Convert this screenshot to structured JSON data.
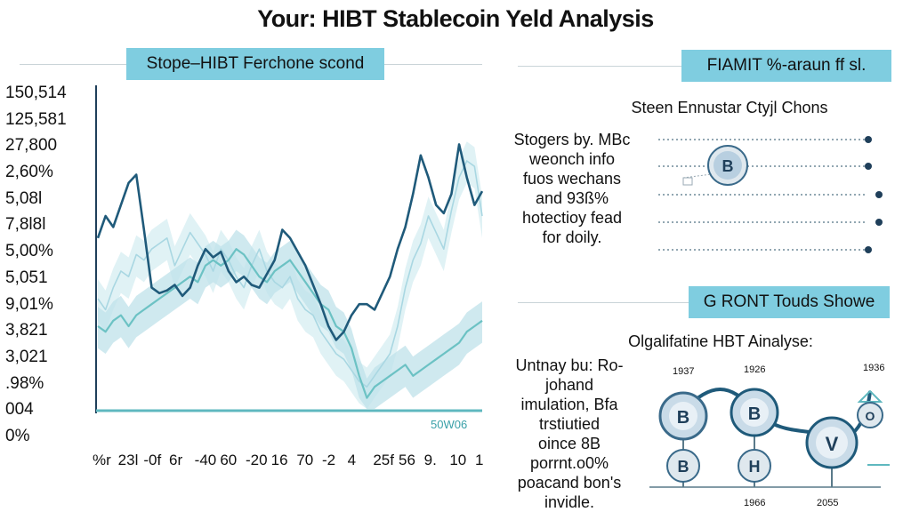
{
  "title": "Your: HIBT Stablecoin Yeld Analysis",
  "left_panel": {
    "header": "Stope–HIBT Ferchone scond",
    "baseline_label": "50W06"
  },
  "right_top": {
    "header": "FIAMIT %-araun ff sl.",
    "subtitle": "Steen Ennustar Ctyjl Chons",
    "text_lines": [
      "Stogers by. MBc",
      "weonch info",
      "fuos wechans",
      "and 93ß%",
      "hotectioy fead",
      "for doily."
    ],
    "badge": "B"
  },
  "right_bottom": {
    "header": "G RONT Touds Showe",
    "subtitle": "Olgalifatine HBT Ainalyse:",
    "text_lines": [
      "Untnay bu: Ro-",
      "johand",
      "imulation, Bfa",
      "trstiutied",
      "oince 8B",
      "porrnt.o0%",
      "poacand bon's",
      "invidle."
    ],
    "year_labels": [
      "1937",
      "1926",
      "1936",
      "1966",
      "2055"
    ],
    "coin_labels": [
      "B",
      "B",
      "B",
      "H",
      "V",
      "O"
    ]
  },
  "chart_data": {
    "type": "line",
    "title": "Stope–HIBT Ferchone scond",
    "y_tick_labels": [
      "150,514",
      "125,581",
      "27,800",
      "2,60%",
      "5,08l",
      "7,8l8l",
      "5,00%",
      "5,051",
      "9,01%",
      "3,821",
      "3,021",
      ".98%",
      "004",
      "0%"
    ],
    "x_tick_labels": [
      "%r",
      "23l",
      "-0f",
      "6r",
      "-40",
      "60",
      "-20",
      "16",
      "70",
      "-2",
      "4",
      "25f",
      "56",
      "9.",
      "10",
      "1"
    ],
    "x": [
      0,
      2,
      4,
      6,
      8,
      10,
      12,
      14,
      16,
      18,
      20,
      22,
      24,
      26,
      28,
      30,
      32,
      34,
      36,
      38,
      40,
      42,
      44,
      46,
      48,
      50,
      52,
      54,
      56,
      58,
      60,
      62,
      64,
      66,
      68,
      70,
      72,
      74,
      76,
      78,
      80,
      82,
      84,
      86,
      88,
      90,
      92,
      94,
      96,
      98,
      100
    ],
    "series": [
      {
        "values": [
          62,
          70,
          66,
          74,
          82,
          85,
          65,
          44,
          42,
          43,
          45,
          41,
          44,
          52,
          58,
          55,
          57,
          50,
          46,
          48,
          45,
          44,
          49,
          54,
          65,
          62,
          57,
          52,
          45,
          38,
          30,
          25,
          28,
          34,
          38,
          38,
          36,
          42,
          48,
          58,
          66,
          78,
          92,
          84,
          74,
          71,
          78,
          96,
          84,
          74,
          79
        ]
      },
      {
        "values": [
          30,
          28,
          32,
          34,
          30,
          34,
          36,
          38,
          40,
          42,
          44,
          46,
          48,
          46,
          52,
          54,
          52,
          54,
          58,
          56,
          52,
          48,
          46,
          50,
          52,
          54,
          50,
          46,
          42,
          38,
          36,
          30,
          28,
          22,
          12,
          4,
          8,
          10,
          12,
          14,
          16,
          12,
          14,
          16,
          18,
          20,
          22,
          24,
          28,
          30,
          32
        ]
      },
      {
        "values": [
          40,
          36,
          44,
          50,
          48,
          56,
          54,
          58,
          60,
          62,
          52,
          58,
          64,
          60,
          56,
          50,
          58,
          54,
          48,
          44,
          52,
          58,
          50,
          46,
          44,
          48,
          40,
          36,
          34,
          28,
          24,
          20,
          18,
          14,
          10,
          8,
          12,
          16,
          20,
          30,
          44,
          54,
          60,
          70,
          64,
          58,
          72,
          84,
          90,
          88,
          70
        ]
      }
    ],
    "ylim": [
      0,
      100
    ],
    "grid": false
  }
}
